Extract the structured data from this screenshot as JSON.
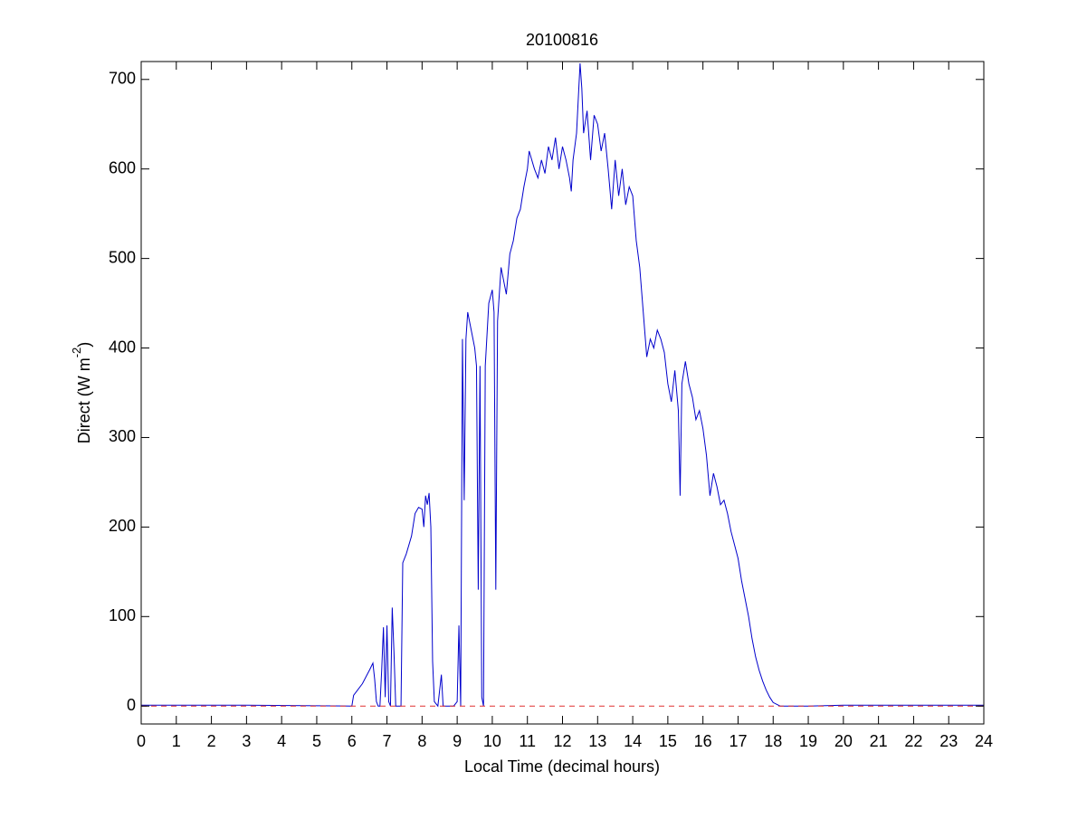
{
  "chart_data": {
    "type": "line",
    "title": "20100816",
    "x_label": "Local Time (decimal hours)",
    "y_label": [
      "Direct (W m",
      "-2",
      ")"
    ],
    "xlim": [
      0,
      24
    ],
    "ylim": [
      -20,
      720
    ],
    "xticks": [
      0,
      1,
      2,
      3,
      4,
      5,
      6,
      7,
      8,
      9,
      10,
      11,
      12,
      13,
      14,
      15,
      16,
      17,
      18,
      19,
      20,
      21,
      22,
      23,
      24
    ],
    "yticks": [
      0,
      100,
      200,
      300,
      400,
      500,
      600,
      700
    ],
    "series": [
      {
        "color": "#0000cc",
        "dash": false,
        "x": [
          0,
          3,
          6,
          6.05,
          6.3,
          6.5,
          6.6,
          6.65,
          6.7,
          6.75,
          6.8,
          6.85,
          6.9,
          6.95,
          7.0,
          7.05,
          7.1,
          7.15,
          7.2,
          7.25,
          7.4,
          7.45,
          7.55,
          7.7,
          7.8,
          7.9,
          8.0,
          8.05,
          8.1,
          8.15,
          8.2,
          8.25,
          8.3,
          8.35,
          8.45,
          8.55,
          8.6,
          8.9,
          9.0,
          9.05,
          9.1,
          9.15,
          9.2,
          9.25,
          9.3,
          9.4,
          9.5,
          9.55,
          9.6,
          9.65,
          9.7,
          9.75,
          9.8,
          9.9,
          10.0,
          10.05,
          10.1,
          10.15,
          10.25,
          10.3,
          10.4,
          10.5,
          10.6,
          10.7,
          10.8,
          10.9,
          11.0,
          11.05,
          11.2,
          11.3,
          11.4,
          11.5,
          11.6,
          11.7,
          11.8,
          11.9,
          12.0,
          12.1,
          12.2,
          12.25,
          12.3,
          12.4,
          12.5,
          12.55,
          12.6,
          12.7,
          12.8,
          12.9,
          13.0,
          13.1,
          13.2,
          13.3,
          13.4,
          13.5,
          13.6,
          13.7,
          13.8,
          13.9,
          14.0,
          14.1,
          14.2,
          14.3,
          14.4,
          14.5,
          14.6,
          14.7,
          14.8,
          14.9,
          15.0,
          15.1,
          15.2,
          15.3,
          15.35,
          15.4,
          15.5,
          15.6,
          15.7,
          15.8,
          15.9,
          16.0,
          16.1,
          16.2,
          16.3,
          16.4,
          16.5,
          16.6,
          16.7,
          16.8,
          16.9,
          17.0,
          17.1,
          17.2,
          17.3,
          17.4,
          17.5,
          17.6,
          17.7,
          17.8,
          17.9,
          18.0,
          18.2,
          18.6,
          19,
          20,
          21,
          22,
          23,
          24
        ],
        "values": [
          1,
          1,
          0,
          12,
          25,
          40,
          48,
          30,
          5,
          0,
          0,
          40,
          88,
          10,
          90,
          5,
          0,
          110,
          60,
          0,
          0,
          160,
          170,
          190,
          215,
          222,
          220,
          200,
          235,
          225,
          238,
          200,
          50,
          5,
          0,
          35,
          0,
          0,
          5,
          90,
          0,
          410,
          230,
          410,
          440,
          420,
          400,
          380,
          130,
          380,
          10,
          0,
          380,
          450,
          465,
          440,
          130,
          430,
          490,
          480,
          460,
          505,
          520,
          545,
          555,
          580,
          600,
          620,
          600,
          590,
          610,
          595,
          625,
          610,
          635,
          600,
          625,
          610,
          590,
          575,
          610,
          640,
          718,
          690,
          640,
          665,
          610,
          660,
          650,
          620,
          640,
          600,
          555,
          610,
          570,
          600,
          560,
          580,
          570,
          520,
          490,
          440,
          390,
          410,
          400,
          420,
          410,
          395,
          360,
          340,
          375,
          330,
          235,
          360,
          385,
          360,
          345,
          320,
          330,
          310,
          280,
          235,
          260,
          245,
          225,
          230,
          215,
          195,
          180,
          165,
          140,
          120,
          100,
          75,
          55,
          40,
          28,
          18,
          10,
          4,
          0,
          0,
          0,
          1,
          1,
          1,
          1,
          1
        ]
      },
      {
        "color": "#e03030",
        "dash": true,
        "x": [
          0,
          24
        ],
        "values": [
          0,
          0
        ]
      }
    ]
  }
}
